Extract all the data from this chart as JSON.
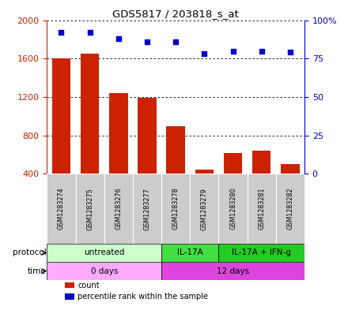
{
  "title": "GDS5817 / 203818_s_at",
  "samples": [
    "GSM1283274",
    "GSM1283275",
    "GSM1283276",
    "GSM1283277",
    "GSM1283278",
    "GSM1283279",
    "GSM1283280",
    "GSM1283281",
    "GSM1283282"
  ],
  "counts": [
    1600,
    1650,
    1240,
    1195,
    895,
    445,
    620,
    640,
    500
  ],
  "percentile_ranks": [
    92,
    92,
    88,
    86,
    86,
    78,
    80,
    80,
    79
  ],
  "ylim_left": [
    400,
    2000
  ],
  "ylim_right": [
    0,
    100
  ],
  "yticks_left": [
    400,
    800,
    1200,
    1600,
    2000
  ],
  "yticks_right": [
    0,
    25,
    50,
    75,
    100
  ],
  "ytick_labels_right": [
    "0",
    "25",
    "50",
    "75",
    "100%"
  ],
  "bar_color": "#cc2200",
  "scatter_color": "#0000cc",
  "grid_color": "#000000",
  "protocol_groups": [
    {
      "label": "untreated",
      "start": 0,
      "end": 4,
      "color": "#ccffcc"
    },
    {
      "label": "IL-17A",
      "start": 4,
      "end": 6,
      "color": "#44dd44"
    },
    {
      "label": "IL-17A + IFN-g",
      "start": 6,
      "end": 9,
      "color": "#22cc22"
    }
  ],
  "time_groups": [
    {
      "label": "0 days",
      "start": 0,
      "end": 4,
      "color": "#ffaaff"
    },
    {
      "label": "12 days",
      "start": 4,
      "end": 9,
      "color": "#dd44dd"
    }
  ],
  "protocol_row_label": "protocol",
  "time_row_label": "time",
  "legend_items": [
    {
      "color": "#cc2200",
      "label": "count"
    },
    {
      "color": "#0000cc",
      "label": "percentile rank within the sample"
    }
  ],
  "sample_box_color": "#cccccc",
  "sample_box_edge": "#aaaaaa"
}
